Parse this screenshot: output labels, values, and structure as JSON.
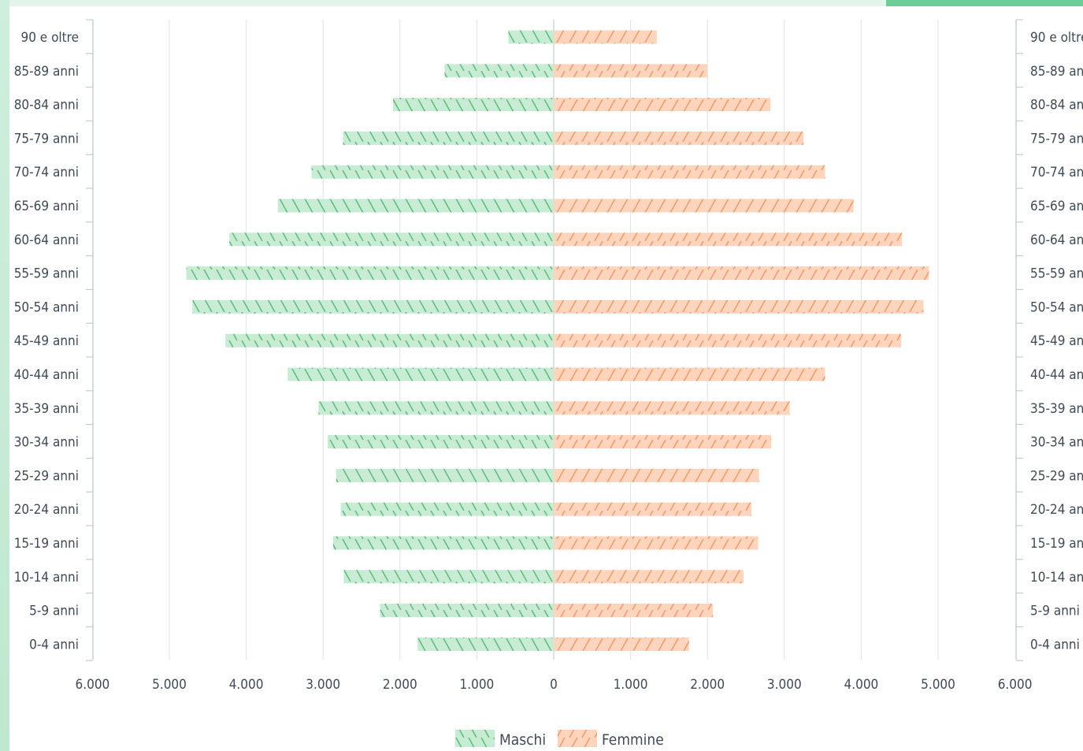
{
  "chart_data": {
    "type": "bar",
    "orientation": "horizontal",
    "layout": "population-pyramid",
    "categories": [
      "90 e oltre",
      "85-89 anni",
      "80-84 anni",
      "75-79 anni",
      "70-74 anni",
      "65-69 anni",
      "60-64 anni",
      "55-59 anni",
      "50-54 anni",
      "45-49 anni",
      "40-44 anni",
      "35-39 anni",
      "30-34 anni",
      "25-29 anni",
      "20-24 anni",
      "15-19 anni",
      "10-14 anni",
      "5-9 anni",
      "0-4 anni"
    ],
    "series": [
      {
        "name": "Maschi",
        "color": "#c7ecd3",
        "hatch": "#5fbf7d",
        "values": [
          590,
          1420,
          2090,
          2740,
          3150,
          3590,
          4220,
          4780,
          4700,
          4270,
          3460,
          3060,
          2940,
          2830,
          2770,
          2870,
          2730,
          2260,
          1770
        ]
      },
      {
        "name": "Femmine",
        "color": "#fdd5bd",
        "hatch": "#f59a6e",
        "values": [
          1340,
          2000,
          2820,
          3250,
          3530,
          3900,
          4530,
          4880,
          4810,
          4520,
          3530,
          3070,
          2830,
          2670,
          2570,
          2660,
          2470,
          2070,
          1760
        ]
      }
    ],
    "xticks": [
      "6.000",
      "5.000",
      "4.000",
      "3.000",
      "2.000",
      "1.000",
      "0",
      "1.000",
      "2.000",
      "3.000",
      "4.000",
      "5.000",
      "6.000"
    ],
    "xlim": [
      -6000,
      6000
    ],
    "grid": true,
    "legend": "bottom-center",
    "legend_labels": [
      "Maschi",
      "Femmine"
    ]
  }
}
